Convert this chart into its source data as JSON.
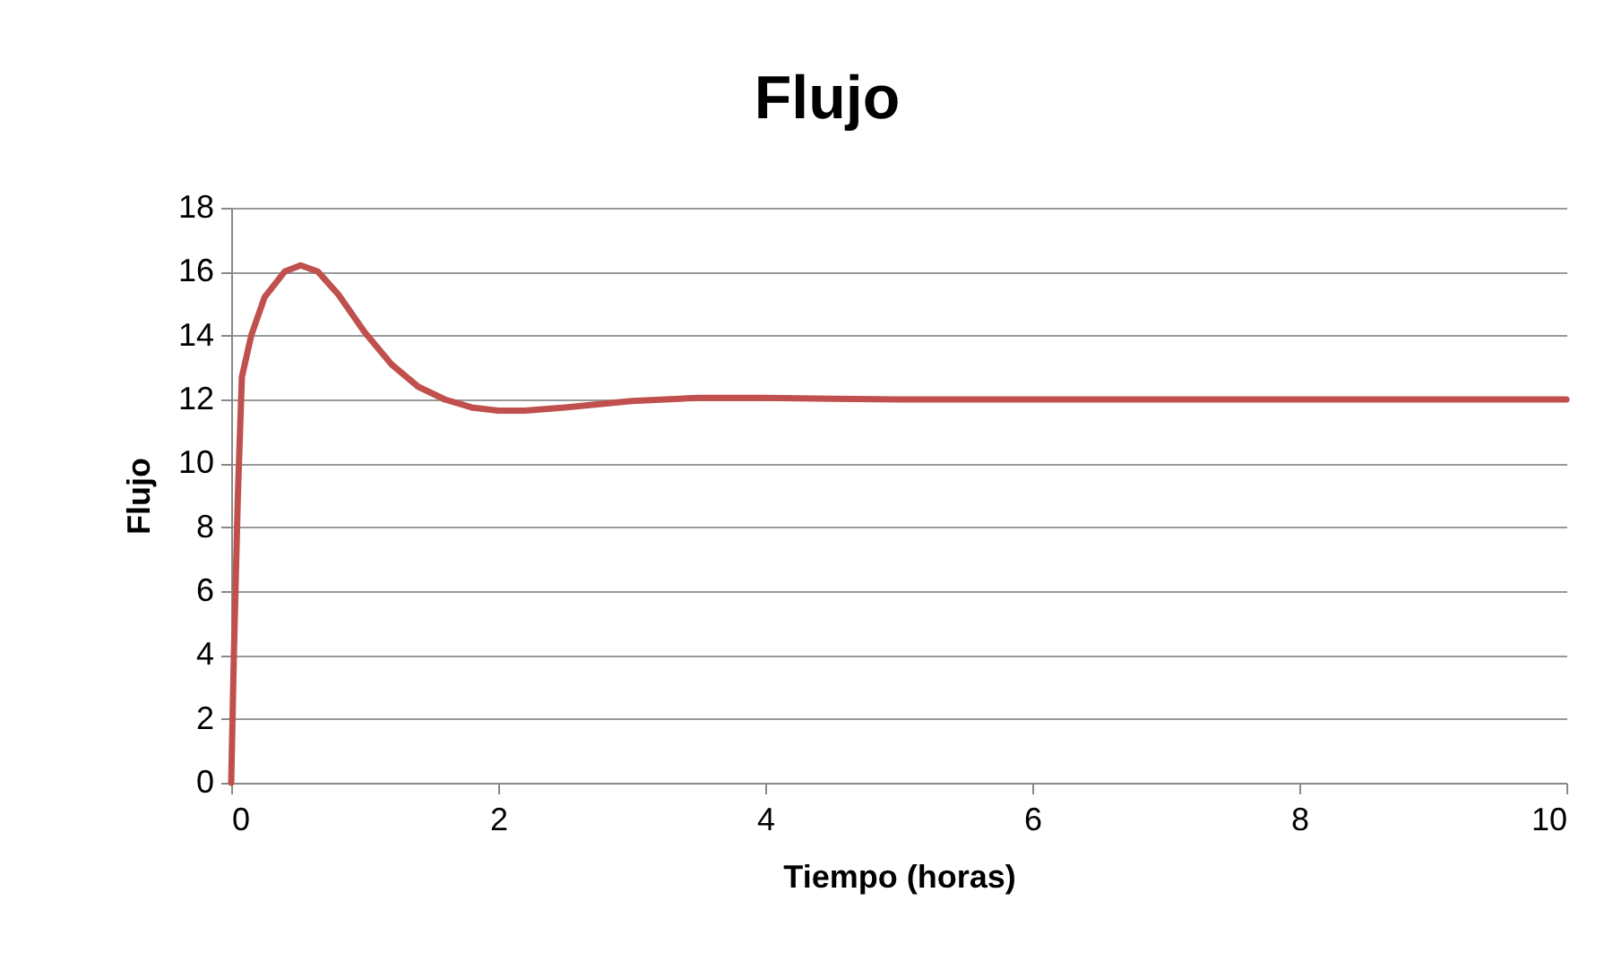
{
  "chart_data": {
    "type": "line",
    "title": "Flujo",
    "xlabel": "Tiempo (horas)",
    "ylabel": "Flujo",
    "x": [
      0,
      0.02,
      0.05,
      0.08,
      0.15,
      0.25,
      0.4,
      0.52,
      0.65,
      0.8,
      1.0,
      1.2,
      1.4,
      1.6,
      1.8,
      2.0,
      2.2,
      2.5,
      3.0,
      3.5,
      4.0,
      4.5,
      5,
      6,
      7,
      8,
      9,
      10
    ],
    "series": [
      {
        "color": "#c0504d",
        "values": [
          0,
          4,
          9,
          12.7,
          14,
          15.2,
          16,
          16.2,
          16,
          15.3,
          14.1,
          13.1,
          12.4,
          12,
          11.75,
          11.65,
          11.65,
          11.75,
          11.95,
          12.05,
          12.05,
          12.02,
          12,
          12,
          12,
          12,
          12,
          12
        ]
      }
    ],
    "xlim": [
      0,
      10
    ],
    "xticks": [
      0,
      2,
      4,
      6,
      8,
      10
    ],
    "ylim": [
      0,
      18
    ],
    "yticks": [
      0,
      2,
      4,
      6,
      8,
      10,
      12,
      14,
      16,
      18
    ],
    "grid": "y",
    "legend": false,
    "marker": "none",
    "line_style": "solid"
  }
}
